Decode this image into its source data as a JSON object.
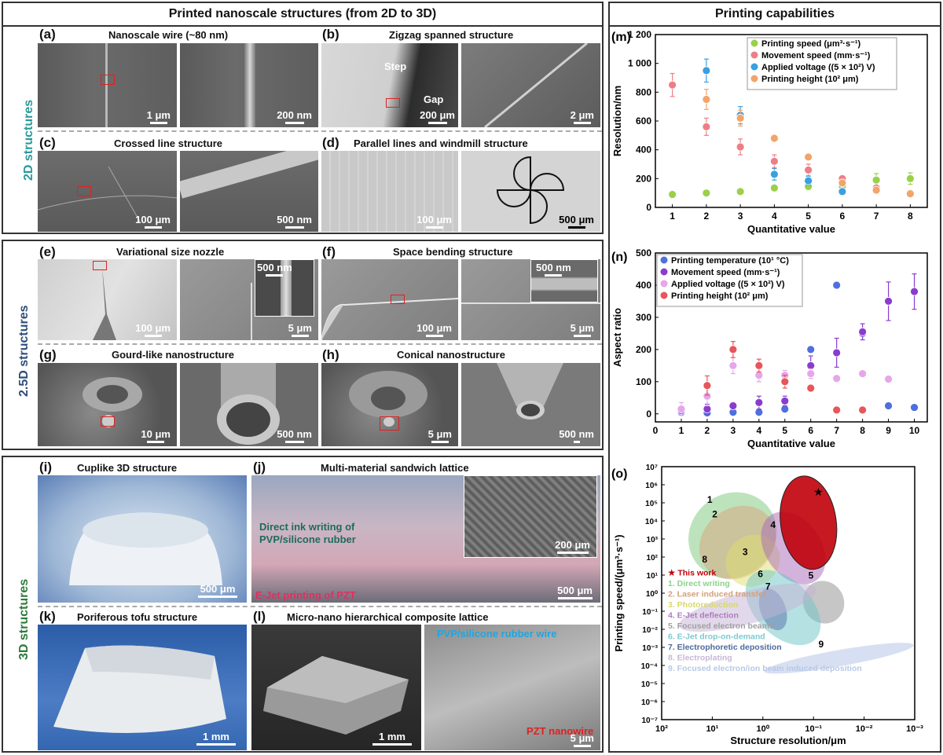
{
  "left_header": "Printed nanoscale structures (from 2D to 3D)",
  "right_header": "Printing capabilities",
  "side_labels": {
    "s2d": "2D structures",
    "s25d": "2.5D structures",
    "s3d": "3D structures"
  },
  "panels": {
    "a": {
      "letter": "(a)",
      "title": "Nanoscale wire (~80 nm)",
      "sb1": "1 μm",
      "sb2": "200 nm"
    },
    "b": {
      "letter": "(b)",
      "title": "Zigzag spanned structure",
      "step": "Step",
      "gap": "Gap",
      "sb1": "200 μm",
      "sb2": "2 μm"
    },
    "c": {
      "letter": "(c)",
      "title": "Crossed line structure",
      "sb1": "100 μm",
      "sb2": "500 nm"
    },
    "d": {
      "letter": "(d)",
      "title": "Parallel lines and windmill structure",
      "sb1": "100 μm",
      "sb2": "500 μm"
    },
    "e": {
      "letter": "(e)",
      "title": "Variational size nozzle",
      "sb1": "100 μm",
      "sb2": "5 μm",
      "sb_inset": "500 nm"
    },
    "f": {
      "letter": "(f)",
      "title": "Space bending structure",
      "sb1": "100 μm",
      "sb2": "5 μm",
      "sb_inset": "500 nm"
    },
    "g": {
      "letter": "(g)",
      "title": "Gourd-like nanostructure",
      "sb1": "10 μm",
      "sb2": "500 nm"
    },
    "h": {
      "letter": "(h)",
      "title": "Conical nanostructure",
      "sb1": "5 μm",
      "sb2": "500 nm"
    },
    "i": {
      "letter": "(i)",
      "title": "Cuplike 3D structure",
      "sb1": "500 μm"
    },
    "j": {
      "letter": "(j)",
      "title": "Multi-material sandwich lattice",
      "ann1": "Direct ink writing of",
      "ann2": "PVP/silicone rubber",
      "ann3": "E-Jet printing of PZT",
      "sb1": "500 μm",
      "sb_inset": "200 μm"
    },
    "k": {
      "letter": "(k)",
      "title": "Poriferous tofu structure",
      "sb1": "1 mm"
    },
    "l": {
      "letter": "(l)",
      "title": "Micro-nano hierarchical composite lattice",
      "sb1": "1 mm",
      "ann1": "PVP/silicone rubber wire",
      "ann2": "PZT nanowire",
      "sb2": "5 μm"
    }
  },
  "chart_data": [
    {
      "id": "m",
      "letter": "(m)",
      "type": "scatter",
      "xlabel": "Quantitative value",
      "ylabel": "Resolution/nm",
      "xlim": [
        0.5,
        8.5
      ],
      "ylim": [
        0,
        1200
      ],
      "xticks": [
        "1",
        "2",
        "3",
        "4",
        "5",
        "6",
        "7",
        "8"
      ],
      "yticks": [
        "0",
        "200",
        "400",
        "600",
        "800",
        "1 000",
        "1 200"
      ],
      "legend_position": "top-right",
      "series": [
        {
          "name": "Printing speed (μm³·s⁻¹)",
          "color": "#9ad04a",
          "points": [
            [
              1,
              90
            ],
            [
              2,
              100
            ],
            [
              3,
              110
            ],
            [
              4,
              135
            ],
            [
              5,
              145
            ],
            [
              6,
              145
            ],
            [
              7,
              190
            ],
            [
              8,
              200
            ]
          ],
          "err": [
            0,
            0,
            0,
            20,
            25,
            15,
            45,
            40
          ]
        },
        {
          "name": "Movement speed (mm·s⁻¹)",
          "color": "#ec7f86",
          "points": [
            [
              1,
              850
            ],
            [
              2,
              560
            ],
            [
              3,
              420
            ],
            [
              4,
              320
            ],
            [
              5,
              260
            ],
            [
              6,
              200
            ],
            [
              7,
              135
            ],
            [
              8,
              100
            ]
          ],
          "err": [
            80,
            60,
            55,
            45,
            40,
            20,
            15,
            10
          ]
        },
        {
          "name": "Applied voltage ((5 × 10²) V)",
          "color": "#3aa0e0",
          "points": [
            [
              2,
              950
            ],
            [
              3,
              640
            ],
            [
              4,
              230
            ],
            [
              5,
              185
            ],
            [
              6,
              110
            ]
          ],
          "err": [
            80,
            60,
            40,
            30,
            15
          ]
        },
        {
          "name": "Printing height (10² μm)",
          "color": "#f2a46a",
          "points": [
            [
              2,
              750
            ],
            [
              3,
              620
            ],
            [
              4,
              480
            ],
            [
              5,
              350
            ],
            [
              6,
              170
            ],
            [
              7,
              120
            ],
            [
              8,
              95
            ]
          ],
          "err": [
            70,
            55,
            20,
            15,
            15,
            15,
            10
          ]
        }
      ]
    },
    {
      "id": "n",
      "letter": "(n)",
      "type": "scatter",
      "xlabel": "Quantitative value",
      "ylabel": "Aspect ratio",
      "xlim": [
        0,
        10.5
      ],
      "ylim": [
        -25,
        500
      ],
      "xticks": [
        "0",
        "1",
        "2",
        "3",
        "4",
        "5",
        "6",
        "7",
        "8",
        "9",
        "10"
      ],
      "yticks": [
        "0",
        "100",
        "200",
        "300",
        "400",
        "500"
      ],
      "legend_position": "top-left",
      "series": [
        {
          "name": "Printing temperature (10¹ °C)",
          "color": "#4d6fe0",
          "points": [
            [
              1,
              5
            ],
            [
              2,
              3
            ],
            [
              3,
              5
            ],
            [
              4,
              5
            ],
            [
              5,
              15
            ],
            [
              6,
              200
            ],
            [
              7,
              400
            ],
            [
              8,
              250
            ],
            [
              9,
              25
            ],
            [
              10,
              20
            ]
          ],
          "err": [
            0,
            0,
            0,
            0,
            0,
            0,
            10,
            10,
            0,
            0
          ]
        },
        {
          "name": "Movement speed (mm·s⁻¹)",
          "color": "#8a3ccf",
          "points": [
            [
              1,
              10
            ],
            [
              2,
              15
            ],
            [
              3,
              25
            ],
            [
              4,
              35
            ],
            [
              5,
              40
            ],
            [
              6,
              150
            ],
            [
              7,
              190
            ],
            [
              8,
              255
            ],
            [
              9,
              350
            ],
            [
              10,
              380
            ]
          ],
          "err": [
            10,
            15,
            10,
            20,
            15,
            30,
            45,
            25,
            60,
            55
          ]
        },
        {
          "name": "Applied voltage ((5 × 10²) V)",
          "color": "#e6a6ea",
          "points": [
            [
              1,
              15
            ],
            [
              2,
              55
            ],
            [
              3,
              150
            ],
            [
              4,
              120
            ],
            [
              5,
              120
            ],
            [
              6,
              125
            ],
            [
              7,
              110
            ],
            [
              8,
              125
            ],
            [
              9,
              108
            ]
          ],
          "err": [
            20,
            30,
            25,
            20,
            15,
            15,
            10,
            10,
            10
          ]
        },
        {
          "name": "Printing height (10² μm)",
          "color": "#e8555a",
          "points": [
            [
              2,
              88
            ],
            [
              3,
              200
            ],
            [
              4,
              150
            ],
            [
              5,
              100
            ],
            [
              6,
              80
            ],
            [
              7,
              12
            ],
            [
              8,
              12
            ]
          ],
          "err": [
            30,
            25,
            20,
            20,
            10,
            0,
            0
          ]
        }
      ]
    },
    {
      "id": "o",
      "letter": "(o)",
      "type": "scatter",
      "xlabel": "Structure resolution/μm",
      "ylabel": "Printing speed/(μm³·s⁻¹)",
      "x_scale": "log-reversed",
      "y_scale": "log",
      "xticks": [
        "10²",
        "10¹",
        "10⁰",
        "10⁻¹",
        "10⁻²",
        "10⁻³"
      ],
      "yticks": [
        "10⁻⁷",
        "10⁻⁶",
        "10⁻⁵",
        "10⁻⁴",
        "10⁻³",
        "10⁻²",
        "10⁻¹",
        "10⁰",
        "10¹",
        "10²",
        "10³",
        "10⁴",
        "10⁵",
        "10⁶",
        "10⁷"
      ],
      "legend": [
        {
          "label": "★ This work",
          "color": "#c0000a"
        },
        {
          "label": "1. Direct writing",
          "color": "#8cd18c"
        },
        {
          "label": "2. Laser induced transfer",
          "color": "#d4a07a"
        },
        {
          "label": "3. Photoreduction",
          "color": "#d8d86a"
        },
        {
          "label": "4. E-Jet deflection",
          "color": "#b07cc0"
        },
        {
          "label": "5. Focused electron beams",
          "color": "#a0a0a0"
        },
        {
          "label": "6. E-Jet drop-on-demand",
          "color": "#7ccbd0"
        },
        {
          "label": "7. Electrophoretic deposition",
          "color": "#4e6a9a"
        },
        {
          "label": "8. Electroplating",
          "color": "#c7b8d8"
        },
        {
          "label": "9. Focused electron/ion beam induced deposition",
          "color": "#b8c8e8"
        }
      ],
      "regions": [
        {
          "num": "1",
          "color": "#7cc87c",
          "log_center": [
            0.6,
            3.2
          ],
          "log_rx": 0.9,
          "log_ry": 2.3,
          "angle": -38
        },
        {
          "num": "2",
          "color": "#d9a37a",
          "log_center": [
            0.5,
            2.8
          ],
          "log_rx": 0.8,
          "log_ry": 1.9,
          "angle": -38
        },
        {
          "num": "3",
          "color": "#dede70",
          "log_center": [
            0.2,
            1.8
          ],
          "log_rx": 0.55,
          "log_ry": 1.4,
          "angle": -30
        },
        {
          "num": "4",
          "color": "#a868b8",
          "log_center": [
            -0.6,
            2.5
          ],
          "log_rx": 0.55,
          "log_ry": 2.2,
          "angle": -35
        },
        {
          "num": "5",
          "color": "#8e8e8e",
          "log_center": [
            -1.2,
            -0.5
          ],
          "log_rx": 0.4,
          "log_ry": 1.2,
          "angle": -30
        },
        {
          "num": "6",
          "color": "#6cc4c8",
          "log_center": [
            -0.4,
            -0.8
          ],
          "log_rx": 0.55,
          "log_ry": 2.5,
          "angle": -45
        },
        {
          "num": "7",
          "color": "#5470a8",
          "log_center": [
            -0.2,
            -0.9
          ],
          "log_rx": 0.25,
          "log_ry": 1.2,
          "angle": -20
        },
        {
          "num": "8",
          "color": "#c4b3d6",
          "log_center": [
            0.3,
            -0.8
          ],
          "log_rx": 1.4,
          "log_ry": 0.9,
          "angle": -15
        },
        {
          "num": "9",
          "color": "#b0c2e6",
          "log_center": [
            -1.5,
            -3.6
          ],
          "log_rx": 1.5,
          "log_ry": 0.45,
          "angle": -10
        },
        {
          "num": "★",
          "color": "#c0000a",
          "log_center": [
            -0.9,
            3.9
          ],
          "log_rx": 0.55,
          "log_ry": 2.6,
          "angle": -8
        }
      ],
      "this_work_point": [
        0.08,
        400000
      ]
    }
  ]
}
